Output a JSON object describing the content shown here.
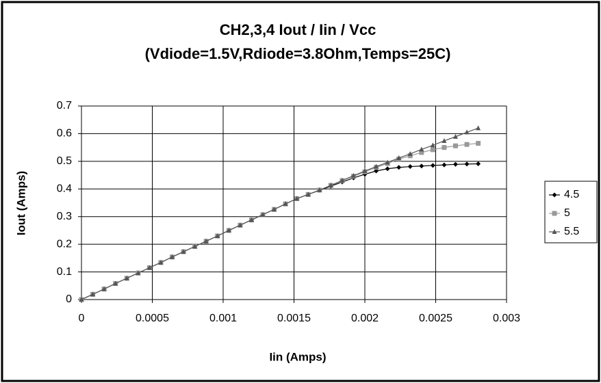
{
  "chart_data": {
    "type": "line",
    "title": "CH2,3,4 Iout / Iin / Vcc",
    "subtitle": "(Vdiode=1.5V,Rdiode=3.8Ohm,Temps=25C)",
    "x_label": "Iin (Amps)",
    "y_label": "Iout (Amps)",
    "x": [
      0,
      8e-05,
      0.00016,
      0.00024,
      0.00032,
      0.0004,
      0.00048,
      0.00056,
      0.00064,
      0.00072,
      0.0008,
      0.00088,
      0.00096,
      0.00104,
      0.00112,
      0.0012,
      0.00128,
      0.00136,
      0.00144,
      0.00152,
      0.0016,
      0.00168,
      0.00176,
      0.00184,
      0.00192,
      0.002,
      0.00208,
      0.00216,
      0.00224,
      0.00232,
      0.0024,
      0.00248,
      0.00256,
      0.00264,
      0.00272,
      0.0028
    ],
    "series": [
      {
        "name": "4.5",
        "color": "#000000",
        "marker": "diamond",
        "values": [
          0,
          0.019,
          0.038,
          0.058,
          0.077,
          0.096,
          0.115,
          0.134,
          0.154,
          0.173,
          0.192,
          0.211,
          0.23,
          0.25,
          0.269,
          0.288,
          0.307,
          0.326,
          0.346,
          0.365,
          0.38,
          0.395,
          0.41,
          0.425,
          0.44,
          0.453,
          0.465,
          0.473,
          0.478,
          0.481,
          0.483,
          0.485,
          0.487,
          0.489,
          0.49,
          0.491
        ]
      },
      {
        "name": "5",
        "color": "#999999",
        "marker": "square",
        "values": [
          0,
          0.019,
          0.038,
          0.058,
          0.077,
          0.096,
          0.115,
          0.134,
          0.154,
          0.173,
          0.192,
          0.211,
          0.23,
          0.25,
          0.269,
          0.288,
          0.307,
          0.326,
          0.346,
          0.365,
          0.38,
          0.396,
          0.413,
          0.43,
          0.446,
          0.462,
          0.478,
          0.492,
          0.508,
          0.52,
          0.532,
          0.542,
          0.55,
          0.556,
          0.561,
          0.565
        ]
      },
      {
        "name": "5.5",
        "color": "#555555",
        "marker": "triangle",
        "values": [
          0,
          0.019,
          0.038,
          0.058,
          0.077,
          0.096,
          0.115,
          0.134,
          0.154,
          0.173,
          0.192,
          0.211,
          0.23,
          0.25,
          0.269,
          0.288,
          0.307,
          0.326,
          0.346,
          0.365,
          0.38,
          0.396,
          0.413,
          0.431,
          0.448,
          0.465,
          0.481,
          0.496,
          0.512,
          0.527,
          0.543,
          0.558,
          0.574,
          0.589,
          0.605,
          0.62
        ]
      }
    ],
    "xlim": [
      0,
      0.003
    ],
    "xticks": [
      0,
      0.0005,
      0.001,
      0.0015,
      0.002,
      0.0025,
      0.003
    ],
    "ylim": [
      0,
      0.7
    ],
    "yticks": [
      0,
      0.1,
      0.2,
      0.3,
      0.4,
      0.5,
      0.6,
      0.7
    ],
    "grid": true,
    "legend": "right"
  }
}
